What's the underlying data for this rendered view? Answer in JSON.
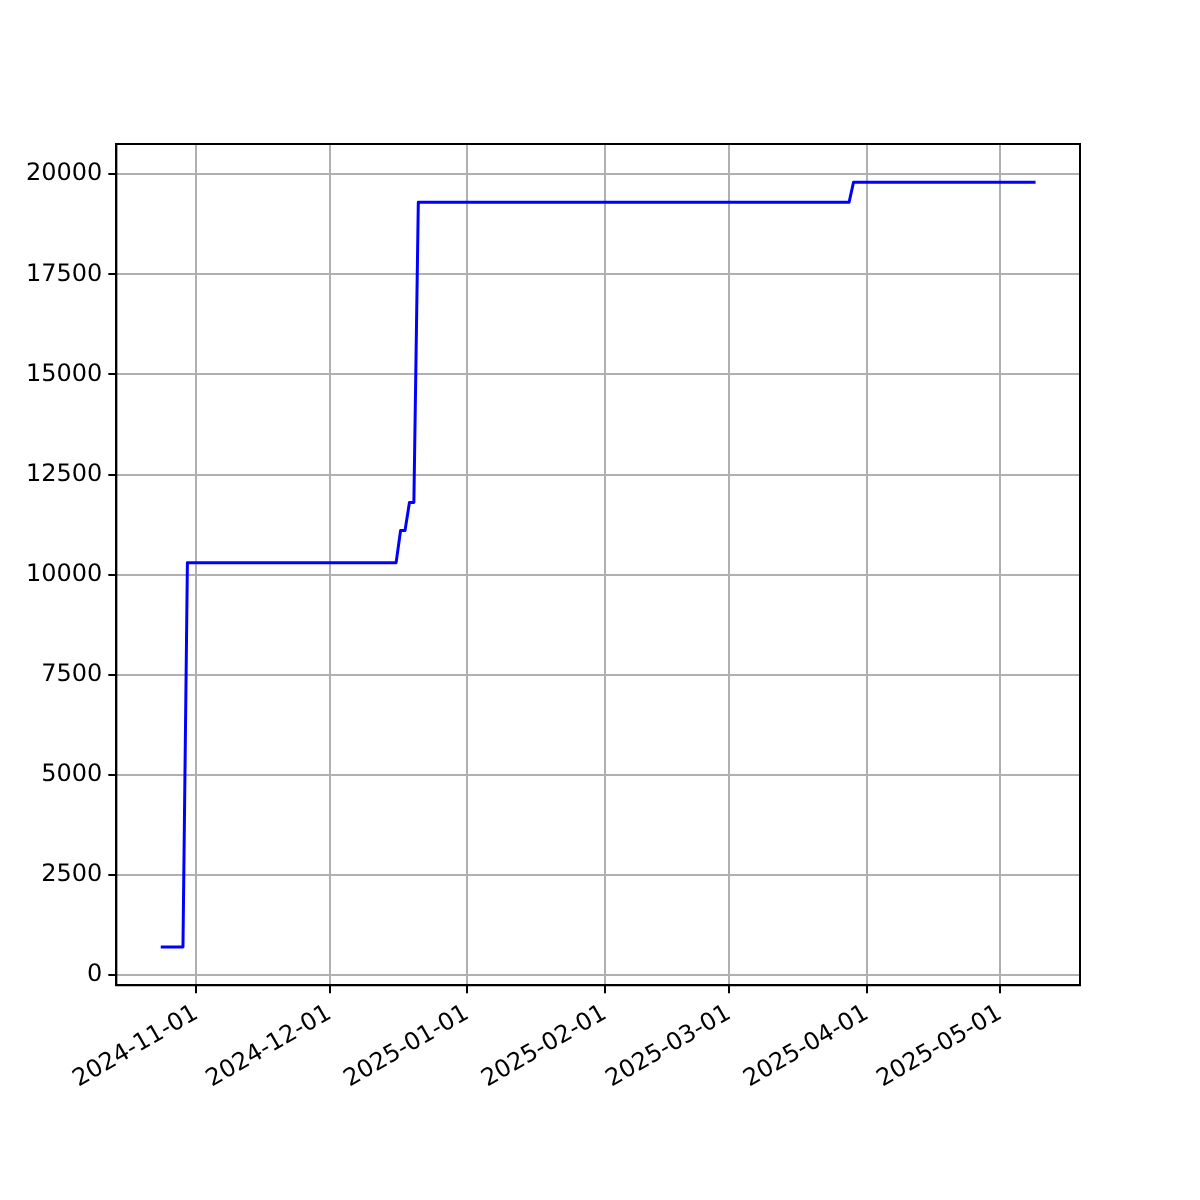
{
  "chart_data": {
    "type": "line",
    "x": [
      "2024-10-24",
      "2024-10-29",
      "2024-10-30",
      "2024-12-16",
      "2024-12-17",
      "2024-12-18",
      "2024-12-19",
      "2024-12-20",
      "2024-12-21",
      "2025-03-28",
      "2025-03-29",
      "2025-05-09"
    ],
    "series": [
      {
        "color": "#0000ff",
        "values": [
          700,
          700,
          10300,
          10300,
          11100,
          11100,
          11800,
          11800,
          19300,
          19300,
          19800,
          19800
        ]
      }
    ],
    "xlim": [
      "2024-10-14",
      "2025-05-19"
    ],
    "xticks": [
      "2024-11-01",
      "2024-12-01",
      "2025-01-01",
      "2025-02-01",
      "2025-03-01",
      "2025-04-01",
      "2025-05-01"
    ],
    "ylim": [
      -255,
      20755
    ],
    "yticks": [
      0,
      2500,
      5000,
      7500,
      10000,
      12500,
      15000,
      17500,
      20000
    ],
    "grid": true,
    "legend": false
  }
}
